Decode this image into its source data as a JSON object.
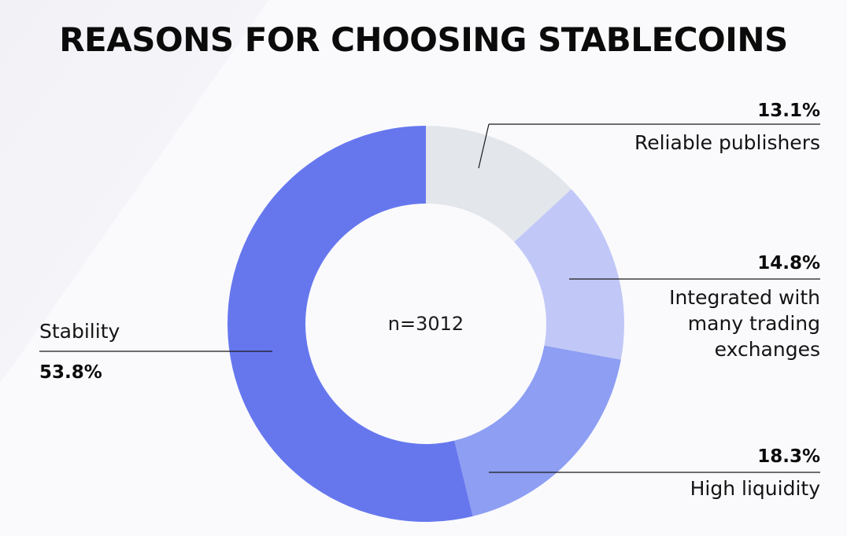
{
  "chart_data": {
    "type": "pie",
    "title": "REASONS FOR CHOOSING STABLECOINS",
    "center_label": "n=3012",
    "slices": [
      {
        "name": "Reliable publishers",
        "value": 13.1,
        "label": "13.1%",
        "color": "#e3e6eb"
      },
      {
        "name": "Integrated with many trading exchanges",
        "value": 14.8,
        "label": "14.8%",
        "color": "#c1c8f7",
        "name_lines": [
          "Integrated with",
          "many trading",
          "exchanges"
        ]
      },
      {
        "name": "High liquidity",
        "value": 18.3,
        "label": "18.3%",
        "color": "#8d9ef3"
      },
      {
        "name": "Stability",
        "value": 53.8,
        "label": "53.8%",
        "color": "#6677ee"
      }
    ]
  }
}
